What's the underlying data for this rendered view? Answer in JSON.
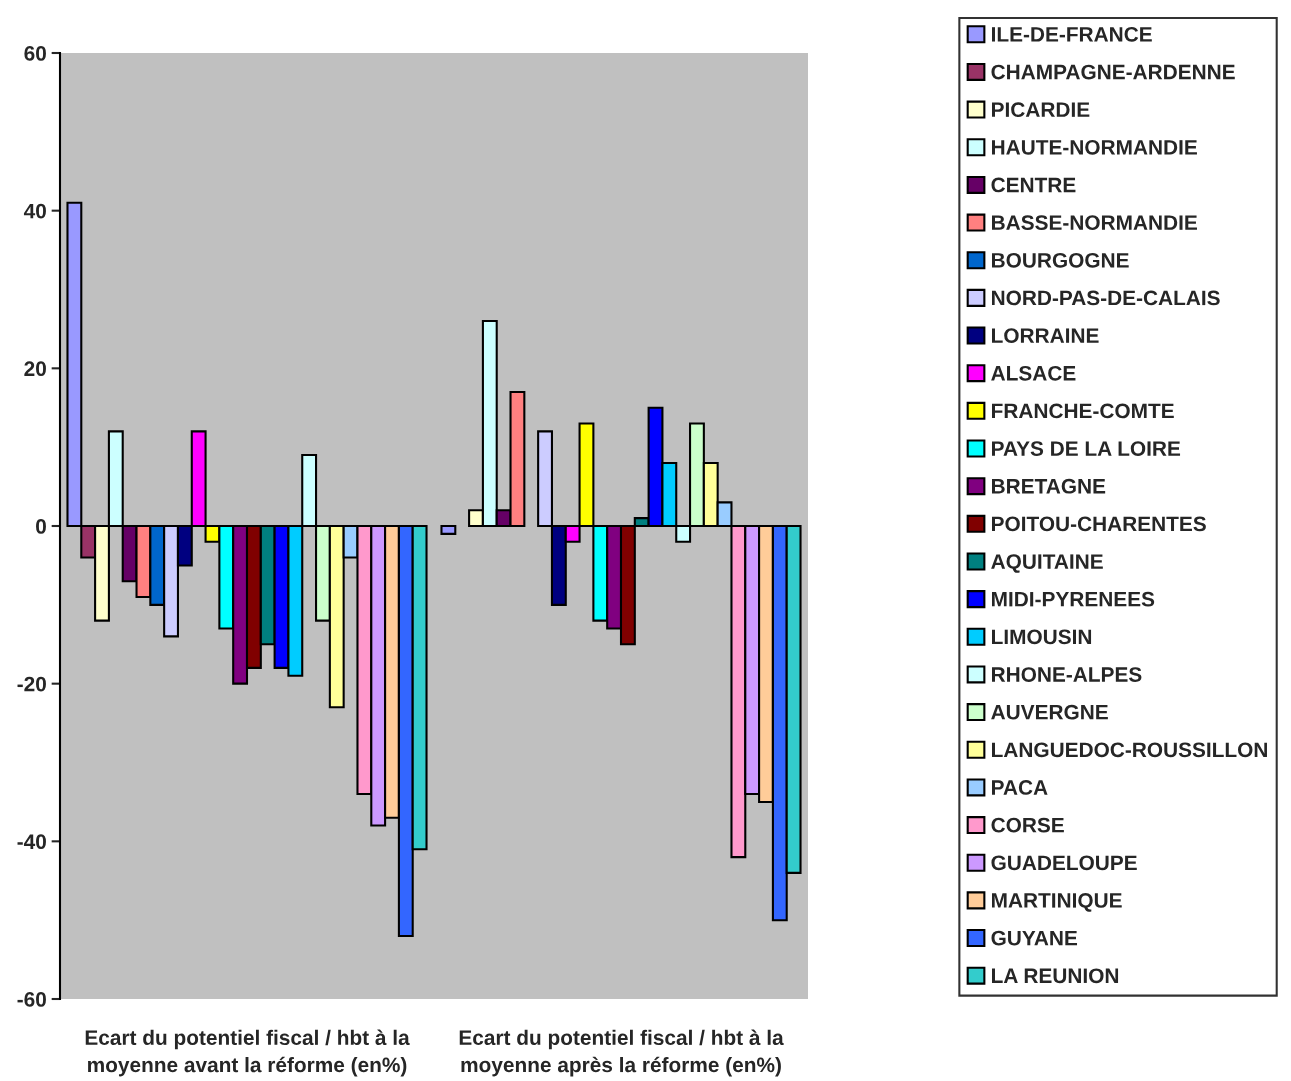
{
  "chart_data": {
    "type": "bar",
    "categories": [
      "Ecart du potentiel fiscal / hbt à la moyenne avant la réforme (en%)",
      "Ecart du potentiel fiscal / hbt à la moyenne après la réforme (en%)"
    ],
    "series": [
      {
        "name": "ILE-DE-FRANCE",
        "color": "#9999ff",
        "values": [
          41,
          -1
        ]
      },
      {
        "name": "CHAMPAGNE-ARDENNE",
        "color": "#993366",
        "values": [
          -4,
          0
        ]
      },
      {
        "name": "PICARDIE",
        "color": "#ffffcc",
        "values": [
          -12,
          2
        ]
      },
      {
        "name": "HAUTE-NORMANDIE",
        "color": "#ccffff",
        "values": [
          12,
          26
        ]
      },
      {
        "name": "CENTRE",
        "color": "#660066",
        "values": [
          -7,
          2
        ]
      },
      {
        "name": "BASSE-NORMANDIE",
        "color": "#ff8080",
        "values": [
          -9,
          17
        ]
      },
      {
        "name": "BOURGOGNE",
        "color": "#0066cc",
        "values": [
          -10,
          0
        ]
      },
      {
        "name": "NORD-PAS-DE-CALAIS",
        "color": "#ccccff",
        "values": [
          -14,
          12
        ]
      },
      {
        "name": "LORRAINE",
        "color": "#000080",
        "values": [
          -5,
          -10
        ]
      },
      {
        "name": "ALSACE",
        "color": "#ff00ff",
        "values": [
          12,
          -2
        ]
      },
      {
        "name": "FRANCHE-COMTE",
        "color": "#ffff00",
        "values": [
          -2,
          13
        ]
      },
      {
        "name": "PAYS DE LA LOIRE",
        "color": "#00ffff",
        "values": [
          -13,
          -12
        ]
      },
      {
        "name": "BRETAGNE",
        "color": "#800080",
        "values": [
          -20,
          -13
        ]
      },
      {
        "name": "POITOU-CHARENTES",
        "color": "#800000",
        "values": [
          -18,
          -15
        ]
      },
      {
        "name": "AQUITAINE",
        "color": "#008080",
        "values": [
          -15,
          1
        ]
      },
      {
        "name": "MIDI-PYRENEES",
        "color": "#0000ff",
        "values": [
          -18,
          15
        ]
      },
      {
        "name": "LIMOUSIN",
        "color": "#00ccff",
        "values": [
          -19,
          8
        ]
      },
      {
        "name": "RHONE-ALPES",
        "color": "#ccffff",
        "values": [
          9,
          -2
        ]
      },
      {
        "name": "AUVERGNE",
        "color": "#ccffcc",
        "values": [
          -12,
          13
        ]
      },
      {
        "name": "LANGUEDOC-ROUSSILLON",
        "color": "#ffff99",
        "values": [
          -23,
          8
        ]
      },
      {
        "name": "PACA",
        "color": "#99ccff",
        "values": [
          -4,
          3
        ]
      },
      {
        "name": "CORSE",
        "color": "#ff99cc",
        "values": [
          -34,
          -42
        ]
      },
      {
        "name": "GUADELOUPE",
        "color": "#cc99ff",
        "values": [
          -38,
          -34
        ]
      },
      {
        "name": "MARTINIQUE",
        "color": "#ffcc99",
        "values": [
          -37,
          -35
        ]
      },
      {
        "name": "GUYANE",
        "color": "#3366ff",
        "values": [
          -52,
          -50
        ]
      },
      {
        "name": "LA REUNION",
        "color": "#33cccc",
        "values": [
          -41,
          -44
        ]
      }
    ],
    "ylim": [
      -60,
      60
    ],
    "yticks": [
      -60,
      -40,
      -20,
      0,
      20,
      40,
      60
    ],
    "grid": false,
    "legend": "right"
  }
}
